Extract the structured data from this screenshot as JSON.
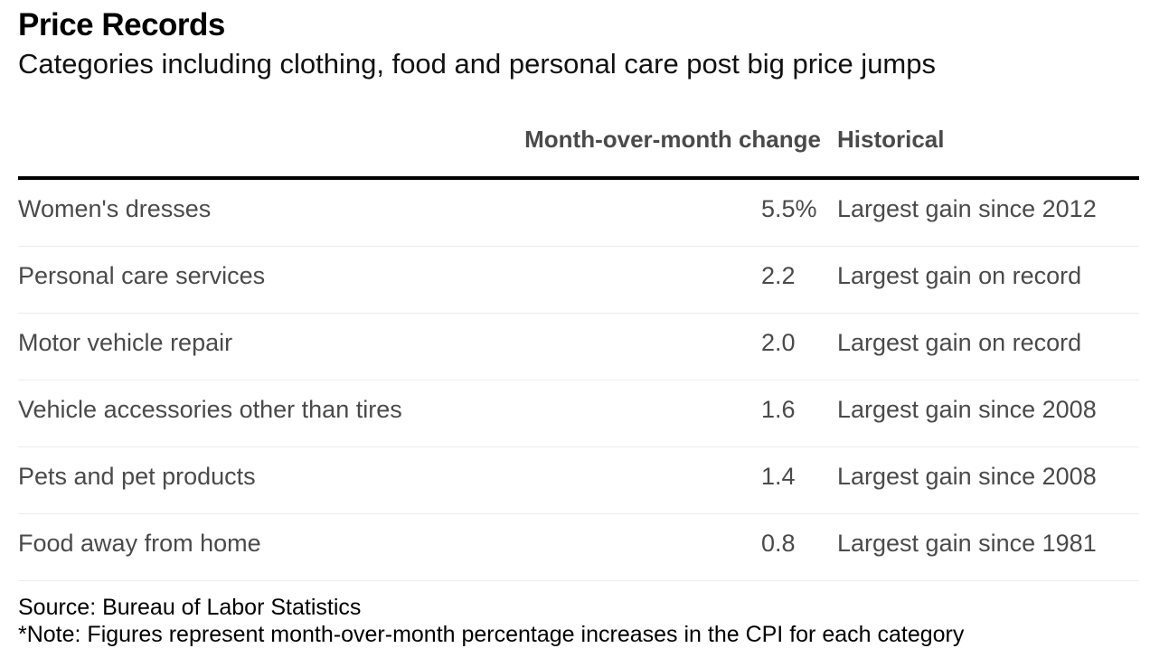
{
  "chart_data": {
    "type": "table",
    "title": "Price Records",
    "subtitle": "Categories including clothing, food and personal care post big price jumps",
    "columns": [
      "",
      "Month-over-month change",
      "Historical"
    ],
    "rows": [
      {
        "category": "Women's dresses",
        "change": "5.5%",
        "historical": "Largest gain since 2012"
      },
      {
        "category": "Personal care services",
        "change": "2.2",
        "historical": "Largest gain on record"
      },
      {
        "category": "Motor vehicle repair",
        "change": "2.0",
        "historical": "Largest gain on record"
      },
      {
        "category": "Vehicle accessories other than tires",
        "change": "1.6",
        "historical": "Largest gain since 2008"
      },
      {
        "category": "Pets and pet products",
        "change": "1.4",
        "historical": "Largest gain since 2008"
      },
      {
        "category": "Food away from home",
        "change": "0.8",
        "historical": "Largest gain since 1981"
      }
    ],
    "source": "Source: Bureau of Labor Statistics",
    "note": "*Note: Figures represent month-over-month percentage increases in the CPI for each category"
  }
}
